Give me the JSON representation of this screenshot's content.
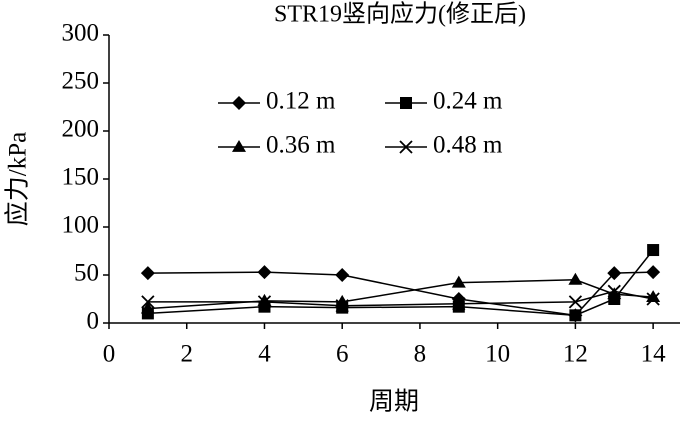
{
  "chart_data": {
    "type": "line",
    "title": "STR19竖向应力(修正后)",
    "x_label": "周期",
    "y_label": "应力/kPa",
    "x": [
      1,
      4,
      6,
      9,
      12,
      13,
      14
    ],
    "series": [
      {
        "name": "0.12 m",
        "color": "#000000",
        "marker": "diamond",
        "values": [
          52,
          53,
          50,
          25,
          8,
          52,
          53
        ]
      },
      {
        "name": "0.24 m",
        "color": "#000000",
        "marker": "square",
        "values": [
          10,
          17,
          16,
          17,
          8,
          25,
          76
        ]
      },
      {
        "name": "0.36 m",
        "color": "#000000",
        "marker": "triangle",
        "values": [
          15,
          23,
          22,
          42,
          45,
          30,
          27
        ]
      },
      {
        "name": "0.48 m",
        "color": "#000000",
        "marker": "x",
        "values": [
          22,
          22,
          18,
          20,
          22,
          33,
          25
        ]
      }
    ],
    "xlim": [
      0,
      15
    ],
    "xticks": [
      0,
      2,
      4,
      6,
      8,
      10,
      12,
      14
    ],
    "ylim": [
      0,
      300
    ],
    "yticks": [
      0,
      50,
      100,
      150,
      200,
      250,
      300
    ],
    "grid": false,
    "legend": "upper center"
  }
}
